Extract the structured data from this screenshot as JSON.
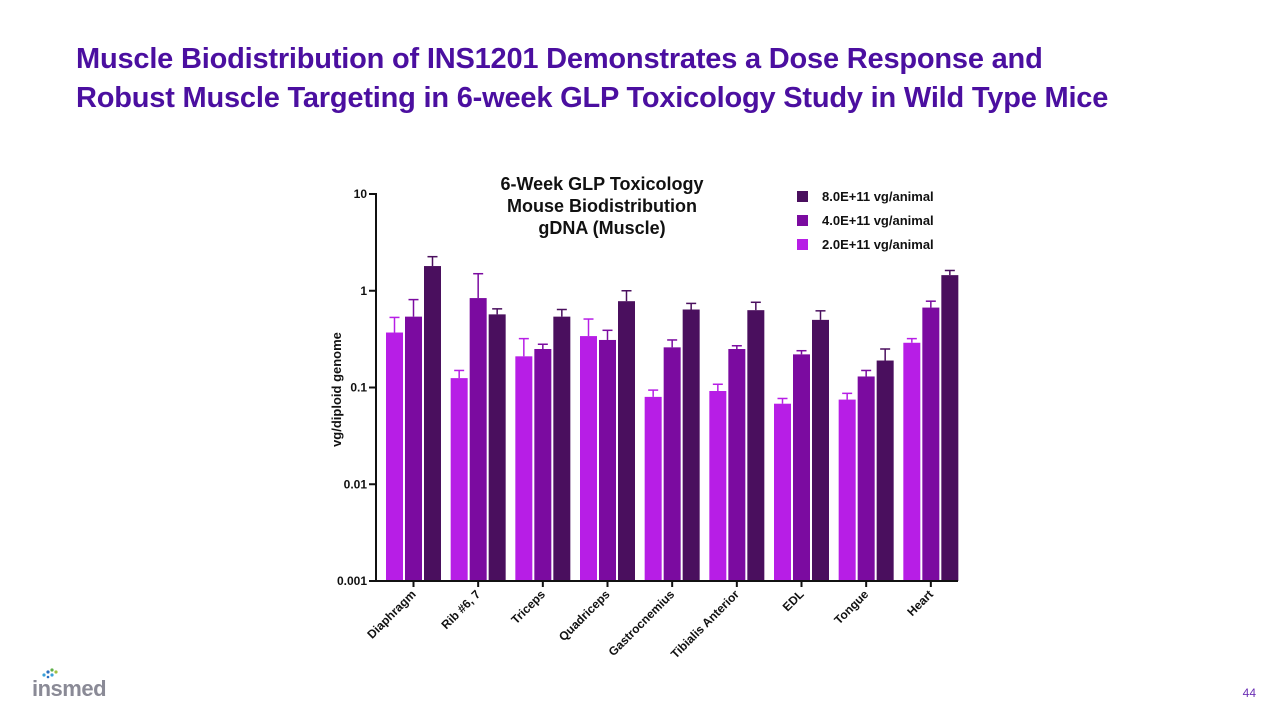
{
  "slide": {
    "title_line1": "Muscle Biodistribution of INS1201 Demonstrates a Dose Response and",
    "title_line2": "Robust Muscle Targeting in 6-week GLP Toxicology Study in Wild Type Mice",
    "page_number": "44",
    "logo_text": "insmed"
  },
  "colors": {
    "title": "#4b0fa0",
    "series_high": "#4a0f5e",
    "series_mid": "#7b0ba0",
    "series_low": "#b71ee6"
  },
  "chart_data": {
    "type": "bar",
    "title_lines": [
      "6-Week GLP Toxicology",
      "Mouse Biodistribution",
      "gDNA (Muscle)"
    ],
    "ylabel": "vg/diploid genome",
    "xlabel": "",
    "yscale": "log",
    "ylim": [
      0.001,
      10
    ],
    "yticks": [
      {
        "value": 10,
        "label": "10"
      },
      {
        "value": 1,
        "label": "1"
      },
      {
        "value": 0.1,
        "label": "0.1"
      },
      {
        "value": 0.01,
        "label": "0.01"
      },
      {
        "value": 0.001,
        "label": "0.001"
      }
    ],
    "categories": [
      "Diaphragm",
      "Rib #6, 7",
      "Triceps",
      "Quadriceps",
      "Gastrocnemius",
      "Tibialis Anterior",
      "EDL",
      "Tongue",
      "Heart"
    ],
    "series": [
      {
        "name": "2.0E+11 vg/animal",
        "color": "#b71ee6",
        "values": [
          0.37,
          0.125,
          0.21,
          0.34,
          0.08,
          0.092,
          0.068,
          0.075,
          0.29
        ],
        "errors": [
          0.53,
          0.15,
          0.32,
          0.51,
          0.094,
          0.108,
          0.077,
          0.087,
          0.32
        ]
      },
      {
        "name": "4.0E+11 vg/animal",
        "color": "#7b0ba0",
        "values": [
          0.54,
          0.84,
          0.25,
          0.31,
          0.26,
          0.25,
          0.22,
          0.13,
          0.67
        ],
        "errors": [
          0.81,
          1.5,
          0.28,
          0.39,
          0.31,
          0.27,
          0.24,
          0.15,
          0.78
        ]
      },
      {
        "name": "8.0E+11 vg/animal",
        "color": "#4a0f5e",
        "values": [
          1.8,
          0.57,
          0.54,
          0.78,
          0.64,
          0.63,
          0.5,
          0.19,
          1.45
        ],
        "errors": [
          2.25,
          0.65,
          0.64,
          1.0,
          0.74,
          0.76,
          0.62,
          0.25,
          1.62
        ]
      }
    ],
    "legend_order": [
      2,
      1,
      0
    ],
    "legend_position": "top-right"
  }
}
